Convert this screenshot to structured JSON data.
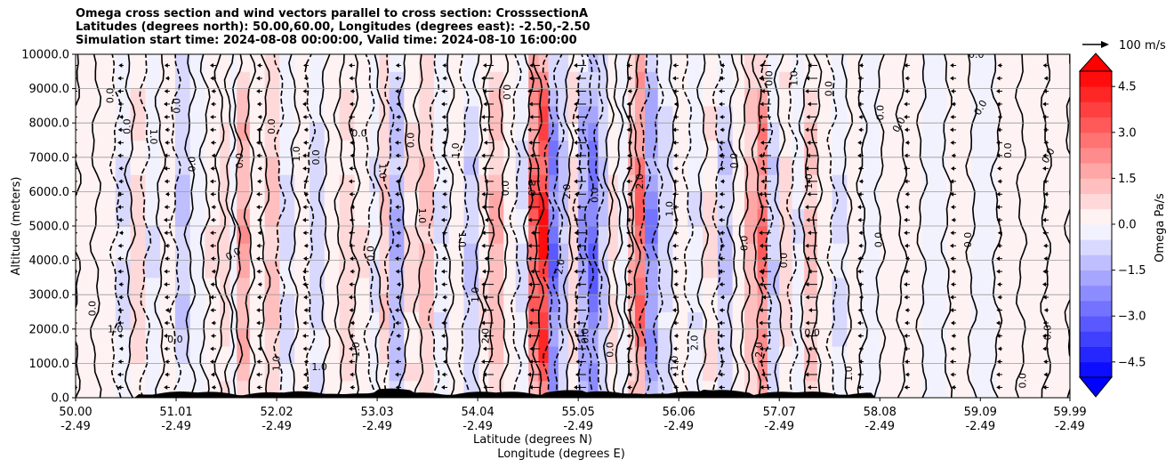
{
  "chart_data": {
    "type": "heatmap",
    "title_lines": [
      "Omega cross section and wind vectors parallel to cross section: CrosssectionA",
      "Latitudes (degrees north): 50.00,60.00, Longitudes (degrees east): -2.50,-2.50",
      "Simulation start time: 2024-08-08 00:00:00, Valid time: 2024-08-10 16:00:00"
    ],
    "xlabel_lat": "Latitude (degrees N)",
    "xlabel_lon": "Longitude (degrees E)",
    "ylabel": "Altitude (meters)",
    "ylim": [
      0,
      10000
    ],
    "yticks": [
      {
        "value": 0,
        "label": "0.0"
      },
      {
        "value": 1000,
        "label": "1000.0"
      },
      {
        "value": 2000,
        "label": "2000.0"
      },
      {
        "value": 3000,
        "label": "3000.0"
      },
      {
        "value": 4000,
        "label": "4000.0"
      },
      {
        "value": 5000,
        "label": "5000.0"
      },
      {
        "value": 6000,
        "label": "6000.0"
      },
      {
        "value": 7000,
        "label": "7000.0"
      },
      {
        "value": 8000,
        "label": "8000.0"
      },
      {
        "value": 9000,
        "label": "9000.0"
      },
      {
        "value": 10000,
        "label": "10000.0"
      }
    ],
    "xlim": [
      50.0,
      59.99
    ],
    "xticks": [
      {
        "value": 50.0,
        "lat": "50.00",
        "lon": "-2.49"
      },
      {
        "value": 51.01,
        "lat": "51.01",
        "lon": "-2.49"
      },
      {
        "value": 52.02,
        "lat": "52.02",
        "lon": "-2.49"
      },
      {
        "value": 53.03,
        "lat": "53.03",
        "lon": "-2.49"
      },
      {
        "value": 54.04,
        "lat": "54.04",
        "lon": "-2.49"
      },
      {
        "value": 55.05,
        "lat": "55.05",
        "lon": "-2.49"
      },
      {
        "value": 56.06,
        "lat": "56.06",
        "lon": "-2.49"
      },
      {
        "value": 57.07,
        "lat": "57.07",
        "lon": "-2.49"
      },
      {
        "value": 58.08,
        "lat": "58.08",
        "lon": "-2.49"
      },
      {
        "value": 59.09,
        "lat": "59.09",
        "lon": "-2.49"
      },
      {
        "value": 59.99,
        "lat": "59.99",
        "lon": "-2.49"
      }
    ],
    "colorbar": {
      "label": "Omega Pa/s",
      "range": [
        -5.0,
        5.0
      ],
      "step": 0.5,
      "ticks": [
        {
          "value": 4.5,
          "label": "4.5"
        },
        {
          "value": 3.0,
          "label": "3.0"
        },
        {
          "value": 1.5,
          "label": "1.5"
        },
        {
          "value": 0.0,
          "label": "0.0"
        },
        {
          "value": -1.5,
          "label": "−1.5"
        },
        {
          "value": -3.0,
          "label": "−3.0"
        },
        {
          "value": -4.5,
          "label": "−4.5"
        }
      ],
      "extend": "both"
    },
    "quiver_key": "100 m/s",
    "omega_bands": [
      {
        "lat": 50.0,
        "value": 0.1
      },
      {
        "lat": 50.2,
        "value": 0.3
      },
      {
        "lat": 50.4,
        "value": -0.5
      },
      {
        "lat": 50.55,
        "value": 0.6
      },
      {
        "lat": 50.7,
        "value": -0.4
      },
      {
        "lat": 50.85,
        "value": 0.2
      },
      {
        "lat": 51.0,
        "value": -0.8
      },
      {
        "lat": 51.15,
        "value": -0.3
      },
      {
        "lat": 51.3,
        "value": 0.4
      },
      {
        "lat": 51.45,
        "value": 0.7
      },
      {
        "lat": 51.55,
        "value": -0.3
      },
      {
        "lat": 51.62,
        "value": 1.4
      },
      {
        "lat": 51.75,
        "value": 0.3
      },
      {
        "lat": 51.9,
        "value": 1.0
      },
      {
        "lat": 52.05,
        "value": -0.5
      },
      {
        "lat": 52.2,
        "value": 0.3
      },
      {
        "lat": 52.35,
        "value": -0.6
      },
      {
        "lat": 52.5,
        "value": 0.2
      },
      {
        "lat": 52.65,
        "value": 0.6
      },
      {
        "lat": 52.8,
        "value": 0.4
      },
      {
        "lat": 52.95,
        "value": -0.4
      },
      {
        "lat": 53.05,
        "value": 0.8
      },
      {
        "lat": 53.15,
        "value": -1.2
      },
      {
        "lat": 53.3,
        "value": 0.5
      },
      {
        "lat": 53.45,
        "value": 1.0
      },
      {
        "lat": 53.6,
        "value": -0.4
      },
      {
        "lat": 53.75,
        "value": 0.3
      },
      {
        "lat": 53.9,
        "value": -0.8
      },
      {
        "lat": 54.05,
        "value": 0.4
      },
      {
        "lat": 54.15,
        "value": 1.2
      },
      {
        "lat": 54.3,
        "value": 0.2
      },
      {
        "lat": 54.42,
        "value": -0.5
      },
      {
        "lat": 54.55,
        "value": 2.6
      },
      {
        "lat": 54.65,
        "value": 3.6
      },
      {
        "lat": 54.75,
        "value": -2.2
      },
      {
        "lat": 54.85,
        "value": -1.0
      },
      {
        "lat": 54.95,
        "value": 0.6
      },
      {
        "lat": 55.05,
        "value": -1.6
      },
      {
        "lat": 55.15,
        "value": -2.4
      },
      {
        "lat": 55.25,
        "value": -1.0
      },
      {
        "lat": 55.35,
        "value": 0.5
      },
      {
        "lat": 55.45,
        "value": -0.3
      },
      {
        "lat": 55.55,
        "value": 1.2
      },
      {
        "lat": 55.62,
        "value": 2.4
      },
      {
        "lat": 55.72,
        "value": -1.8
      },
      {
        "lat": 55.85,
        "value": -0.6
      },
      {
        "lat": 56.0,
        "value": 0.3
      },
      {
        "lat": 56.15,
        "value": -0.4
      },
      {
        "lat": 56.3,
        "value": 0.5
      },
      {
        "lat": 56.45,
        "value": -0.9
      },
      {
        "lat": 56.6,
        "value": 0.3
      },
      {
        "lat": 56.72,
        "value": 1.2
      },
      {
        "lat": 56.85,
        "value": 2.2
      },
      {
        "lat": 56.95,
        "value": -0.8
      },
      {
        "lat": 57.07,
        "value": 0.6
      },
      {
        "lat": 57.2,
        "value": -0.4
      },
      {
        "lat": 57.32,
        "value": 1.0
      },
      {
        "lat": 57.45,
        "value": 0.3
      },
      {
        "lat": 57.6,
        "value": -0.5
      },
      {
        "lat": 57.75,
        "value": 0.2
      },
      {
        "lat": 57.9,
        "value": -0.2
      },
      {
        "lat": 58.08,
        "value": 0.3
      },
      {
        "lat": 58.3,
        "value": 0.2
      },
      {
        "lat": 58.5,
        "value": -0.3
      },
      {
        "lat": 58.75,
        "value": 0.2
      },
      {
        "lat": 59.0,
        "value": -0.1
      },
      {
        "lat": 59.25,
        "value": 0.2
      },
      {
        "lat": 59.5,
        "value": 0.1
      },
      {
        "lat": 59.75,
        "value": 0.2
      },
      {
        "lat": 59.99,
        "value": 0.1
      }
    ],
    "contour_labels": [
      {
        "lat": 50.2,
        "alt": 2600,
        "text": "0.0",
        "rot": -90
      },
      {
        "lat": 50.4,
        "alt": 1900,
        "text": "1.0",
        "rot": 0
      },
      {
        "lat": 50.38,
        "alt": 8800,
        "text": "0.0",
        "rot": -90
      },
      {
        "lat": 50.55,
        "alt": 7900,
        "text": "0.0",
        "rot": -90
      },
      {
        "lat": 50.75,
        "alt": 7600,
        "text": "1.0",
        "rot": 90
      },
      {
        "lat": 51.0,
        "alt": 1600,
        "text": "0.0",
        "rot": 0
      },
      {
        "lat": 51.05,
        "alt": 8500,
        "text": "0.0",
        "rot": -90
      },
      {
        "lat": 51.2,
        "alt": 6800,
        "text": "0.0",
        "rot": -90
      },
      {
        "lat": 51.6,
        "alt": 4100,
        "text": "0.0",
        "rot": -30
      },
      {
        "lat": 51.68,
        "alt": 6900,
        "text": "0.0",
        "rot": -90
      },
      {
        "lat": 52.0,
        "alt": 7900,
        "text": "0.0",
        "rot": -90
      },
      {
        "lat": 52.05,
        "alt": 1000,
        "text": "1.0",
        "rot": -90
      },
      {
        "lat": 52.25,
        "alt": 7100,
        "text": "1.0",
        "rot": -90
      },
      {
        "lat": 52.45,
        "alt": 7000,
        "text": "0.0",
        "rot": -90
      },
      {
        "lat": 52.45,
        "alt": 800,
        "text": "1.0",
        "rot": 0
      },
      {
        "lat": 52.85,
        "alt": 7600,
        "text": "0.0",
        "rot": 0
      },
      {
        "lat": 52.85,
        "alt": 1400,
        "text": "1.0",
        "rot": -90
      },
      {
        "lat": 53.05,
        "alt": 6600,
        "text": "1.0",
        "rot": 90
      },
      {
        "lat": 53.0,
        "alt": 4200,
        "text": "0.0",
        "rot": -90
      },
      {
        "lat": 53.45,
        "alt": 5300,
        "text": "1.0",
        "rot": 90
      },
      {
        "lat": 53.4,
        "alt": 7500,
        "text": "0.0",
        "rot": -90
      },
      {
        "lat": 53.85,
        "alt": 4600,
        "text": "1.0",
        "rot": 90
      },
      {
        "lat": 53.85,
        "alt": 7200,
        "text": "1.0",
        "rot": -90
      },
      {
        "lat": 54.05,
        "alt": 3000,
        "text": "1.0",
        "rot": -90
      },
      {
        "lat": 54.15,
        "alt": 1800,
        "text": "2.0",
        "rot": -90
      },
      {
        "lat": 54.3,
        "alt": 8900,
        "text": "0.0",
        "rot": 90
      },
      {
        "lat": 54.35,
        "alt": 6100,
        "text": "0.0",
        "rot": -90
      },
      {
        "lat": 54.55,
        "alt": 6100,
        "text": "3.0",
        "rot": 90
      },
      {
        "lat": 54.9,
        "alt": 3800,
        "text": "2.0",
        "rot": -80
      },
      {
        "lat": 54.97,
        "alt": 6000,
        "text": "2.0",
        "rot": -90
      },
      {
        "lat": 55.25,
        "alt": 5900,
        "text": "0.0",
        "rot": -90
      },
      {
        "lat": 55.15,
        "alt": 1800,
        "text": "0.0",
        "rot": -90
      },
      {
        "lat": 55.4,
        "alt": 1400,
        "text": "0.0",
        "rot": -90
      },
      {
        "lat": 55.7,
        "alt": 6300,
        "text": "2.0",
        "rot": -90
      },
      {
        "lat": 56.0,
        "alt": 5500,
        "text": "1.0",
        "rot": -90
      },
      {
        "lat": 56.05,
        "alt": 1000,
        "text": "1.0",
        "rot": -90
      },
      {
        "lat": 56.25,
        "alt": 1600,
        "text": "2.0",
        "rot": -90
      },
      {
        "lat": 56.65,
        "alt": 6900,
        "text": "0.0",
        "rot": -90
      },
      {
        "lat": 56.75,
        "alt": 4500,
        "text": "0.0",
        "rot": -90
      },
      {
        "lat": 56.9,
        "alt": 1400,
        "text": "2.0",
        "rot": -90
      },
      {
        "lat": 57.0,
        "alt": 9300,
        "text": "0.0",
        "rot": -90
      },
      {
        "lat": 57.15,
        "alt": 4000,
        "text": "0.0",
        "rot": -90
      },
      {
        "lat": 57.25,
        "alt": 9300,
        "text": "1.0",
        "rot": -90
      },
      {
        "lat": 57.4,
        "alt": 6300,
        "text": "1.0",
        "rot": -90
      },
      {
        "lat": 57.4,
        "alt": 1800,
        "text": "0.0",
        "rot": 0
      },
      {
        "lat": 57.6,
        "alt": 9000,
        "text": "0.0",
        "rot": -90
      },
      {
        "lat": 57.8,
        "alt": 700,
        "text": "1.0",
        "rot": -90
      },
      {
        "lat": 58.1,
        "alt": 4600,
        "text": "0.0",
        "rot": -90
      },
      {
        "lat": 58.12,
        "alt": 8300,
        "text": "0.0",
        "rot": -90
      },
      {
        "lat": 58.3,
        "alt": 7900,
        "text": "0.0",
        "rot": -60
      },
      {
        "lat": 59.0,
        "alt": 4600,
        "text": "0.0",
        "rot": -90
      },
      {
        "lat": 59.12,
        "alt": 8400,
        "text": "0.0",
        "rot": -60
      },
      {
        "lat": 59.05,
        "alt": 9900,
        "text": "0.0",
        "rot": 0
      },
      {
        "lat": 59.4,
        "alt": 7200,
        "text": "0.0",
        "rot": -90
      },
      {
        "lat": 59.8,
        "alt": 7000,
        "text": "0.0",
        "rot": -60
      },
      {
        "lat": 59.8,
        "alt": 1900,
        "text": "0.0",
        "rot": -90
      },
      {
        "lat": 59.55,
        "alt": 500,
        "text": "0.0",
        "rot": -90
      }
    ]
  }
}
